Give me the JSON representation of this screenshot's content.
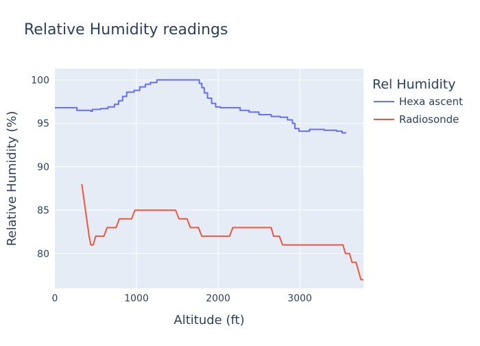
{
  "chart_data": {
    "type": "line",
    "title": "Relative Humidity readings",
    "xlabel": "Altitude (ft)",
    "ylabel": "Relative Humidity (%)",
    "xlim": [
      0,
      3780
    ],
    "ylim": [
      76,
      101.3
    ],
    "x_ticks": [
      0,
      1000,
      2000,
      3000
    ],
    "y_ticks": [
      80,
      85,
      90,
      95,
      100
    ],
    "grid": true,
    "legend": {
      "title": "Rel Humidity",
      "position": "right"
    },
    "series": [
      {
        "name": "Hexa ascent",
        "color": "#636efa",
        "step": true,
        "points": [
          [
            0,
            96.8
          ],
          [
            270,
            96.8
          ],
          [
            270,
            96.5
          ],
          [
            440,
            96.4
          ],
          [
            460,
            96.6
          ],
          [
            560,
            96.7
          ],
          [
            650,
            96.9
          ],
          [
            730,
            97.2
          ],
          [
            780,
            97.6
          ],
          [
            830,
            98.1
          ],
          [
            880,
            98.6
          ],
          [
            970,
            98.8
          ],
          [
            1040,
            99.2
          ],
          [
            1110,
            99.5
          ],
          [
            1170,
            99.7
          ],
          [
            1250,
            100.0
          ],
          [
            1700,
            100.0
          ],
          [
            1770,
            99.6
          ],
          [
            1800,
            99.1
          ],
          [
            1830,
            98.5
          ],
          [
            1870,
            97.9
          ],
          [
            1920,
            97.3
          ],
          [
            1970,
            96.9
          ],
          [
            2030,
            96.8
          ],
          [
            2170,
            96.8
          ],
          [
            2270,
            96.5
          ],
          [
            2380,
            96.3
          ],
          [
            2500,
            96.0
          ],
          [
            2650,
            95.8
          ],
          [
            2760,
            95.7
          ],
          [
            2850,
            95.4
          ],
          [
            2910,
            95.0
          ],
          [
            2940,
            94.4
          ],
          [
            2990,
            94.1
          ],
          [
            3080,
            94.1
          ],
          [
            3120,
            94.3
          ],
          [
            3300,
            94.2
          ],
          [
            3450,
            94.1
          ],
          [
            3520,
            93.9
          ],
          [
            3560,
            94.0
          ]
        ]
      },
      {
        "name": "Radiosonde",
        "color": "#ef553b",
        "step": false,
        "points": [
          [
            330,
            88
          ],
          [
            420,
            82
          ],
          [
            440,
            81
          ],
          [
            470,
            81
          ],
          [
            500,
            82
          ],
          [
            600,
            82
          ],
          [
            640,
            83
          ],
          [
            750,
            83
          ],
          [
            790,
            84
          ],
          [
            940,
            84
          ],
          [
            980,
            85
          ],
          [
            1480,
            85
          ],
          [
            1520,
            84
          ],
          [
            1620,
            84
          ],
          [
            1660,
            83
          ],
          [
            1760,
            83
          ],
          [
            1800,
            82
          ],
          [
            2140,
            82
          ],
          [
            2180,
            83
          ],
          [
            2650,
            83
          ],
          [
            2680,
            82
          ],
          [
            2750,
            82
          ],
          [
            2790,
            81
          ],
          [
            3530,
            81
          ],
          [
            3560,
            80
          ],
          [
            3610,
            80
          ],
          [
            3640,
            79
          ],
          [
            3690,
            79
          ],
          [
            3750,
            77
          ],
          [
            3780,
            77
          ]
        ]
      }
    ]
  }
}
